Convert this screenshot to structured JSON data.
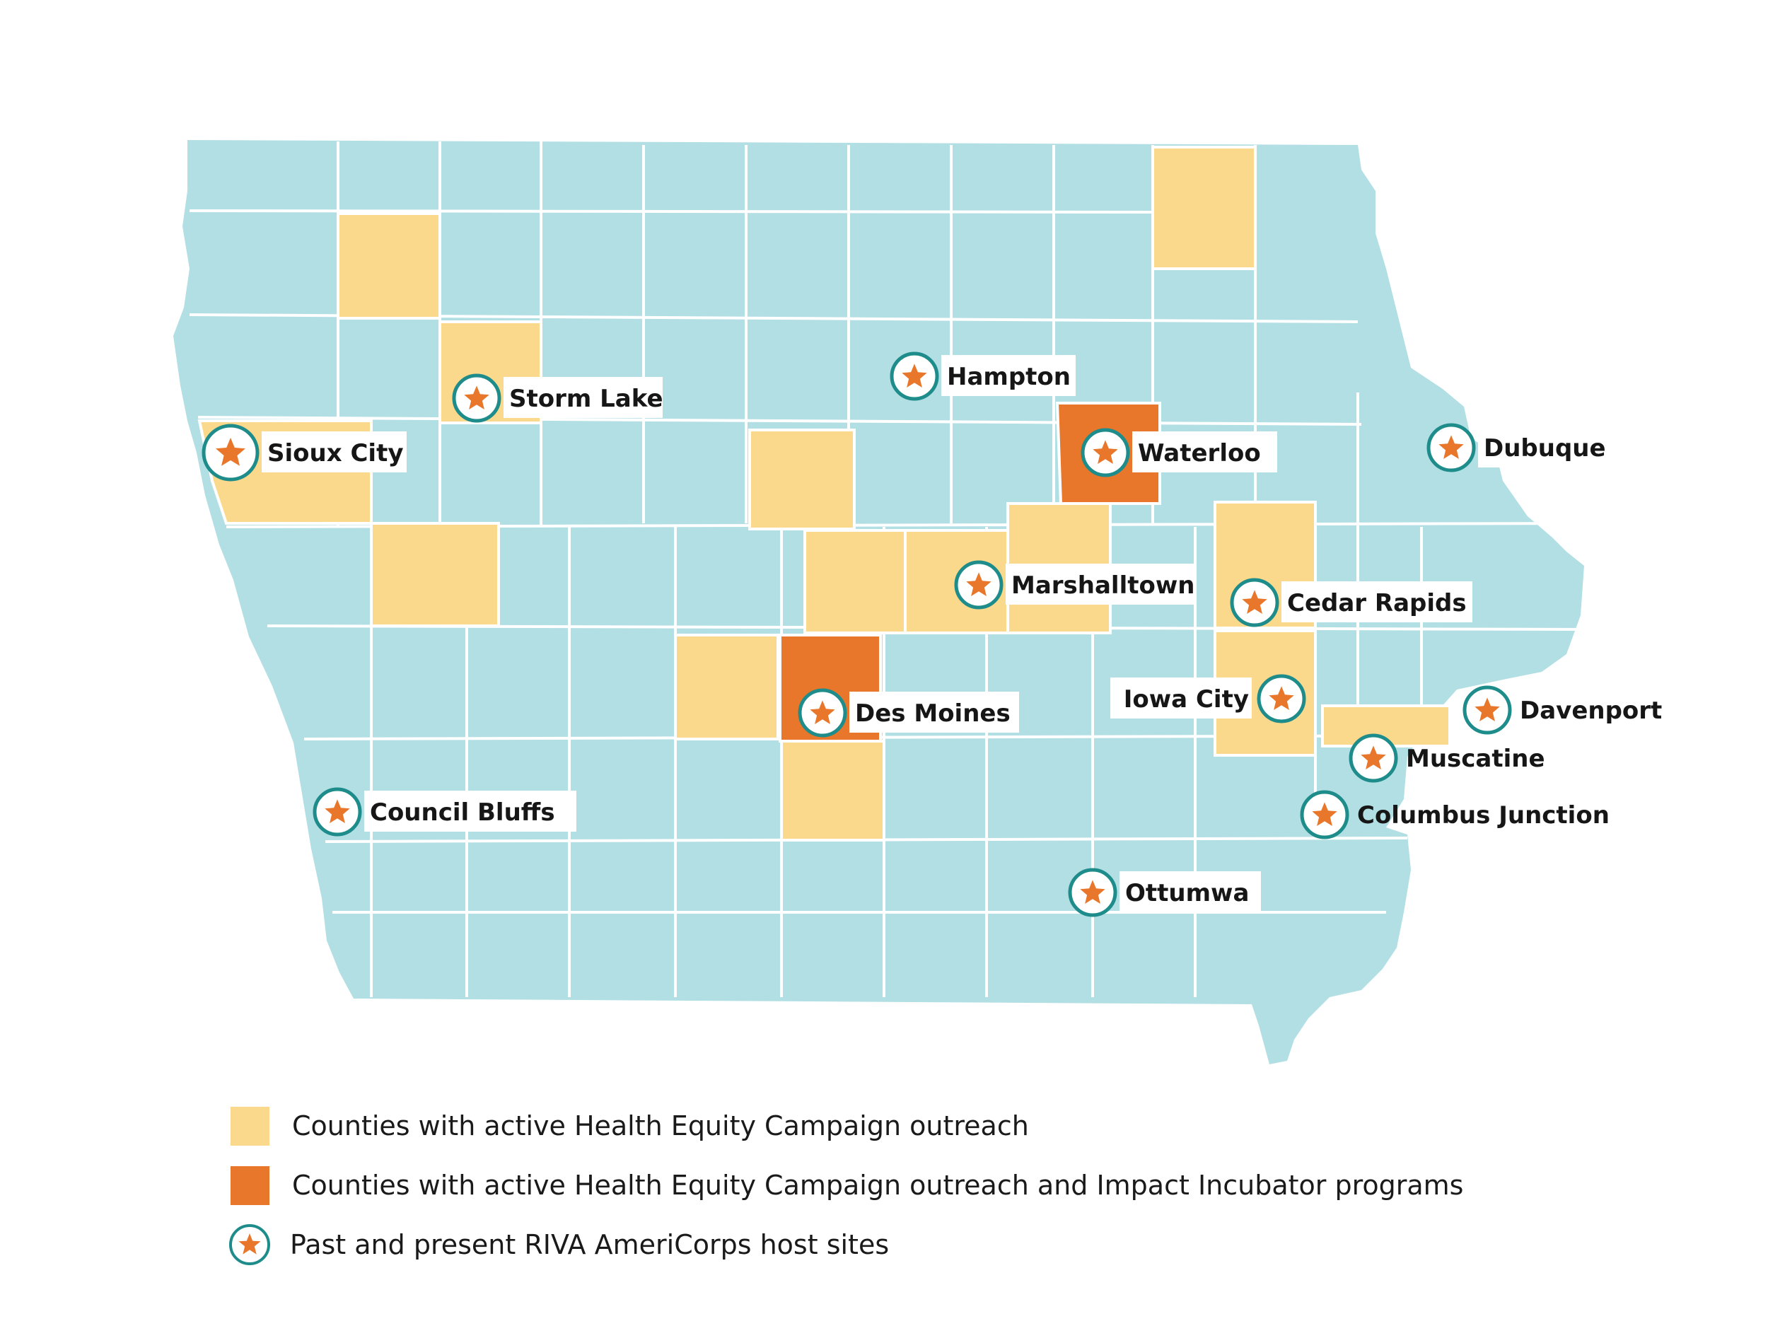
{
  "map": {
    "colors": {
      "default_county": "#B2DFE4",
      "outreach": "#FBD98C",
      "outreach_and_incubator": "#E8772B",
      "marker_ring": "#1E8C8A",
      "marker_star": "#E8772B",
      "border": "#FFFFFF"
    },
    "sites": [
      {
        "id": "sioux-city",
        "name": "Sioux City"
      },
      {
        "id": "storm-lake",
        "name": "Storm Lake"
      },
      {
        "id": "hampton",
        "name": "Hampton"
      },
      {
        "id": "waterloo",
        "name": "Waterloo"
      },
      {
        "id": "dubuque",
        "name": "Dubuque"
      },
      {
        "id": "marshalltown",
        "name": "Marshalltown"
      },
      {
        "id": "cedar-rapids",
        "name": "Cedar Rapids"
      },
      {
        "id": "iowa-city",
        "name": "Iowa City"
      },
      {
        "id": "des-moines",
        "name": "Des Moines"
      },
      {
        "id": "davenport",
        "name": "Davenport"
      },
      {
        "id": "muscatine",
        "name": "Muscatine"
      },
      {
        "id": "council-bluffs",
        "name": "Council Bluffs"
      },
      {
        "id": "columbus-junction",
        "name": "Columbus Junction"
      },
      {
        "id": "ottumwa",
        "name": "Ottumwa"
      }
    ]
  },
  "legend": {
    "outreach_label": "Counties with active Health Equity Campaign outreach",
    "incubator_label": "Counties with active Health Equity Campaign outreach and Impact Incubator programs",
    "host_sites_label": "Past and present RIVA AmeriCorps host sites"
  }
}
